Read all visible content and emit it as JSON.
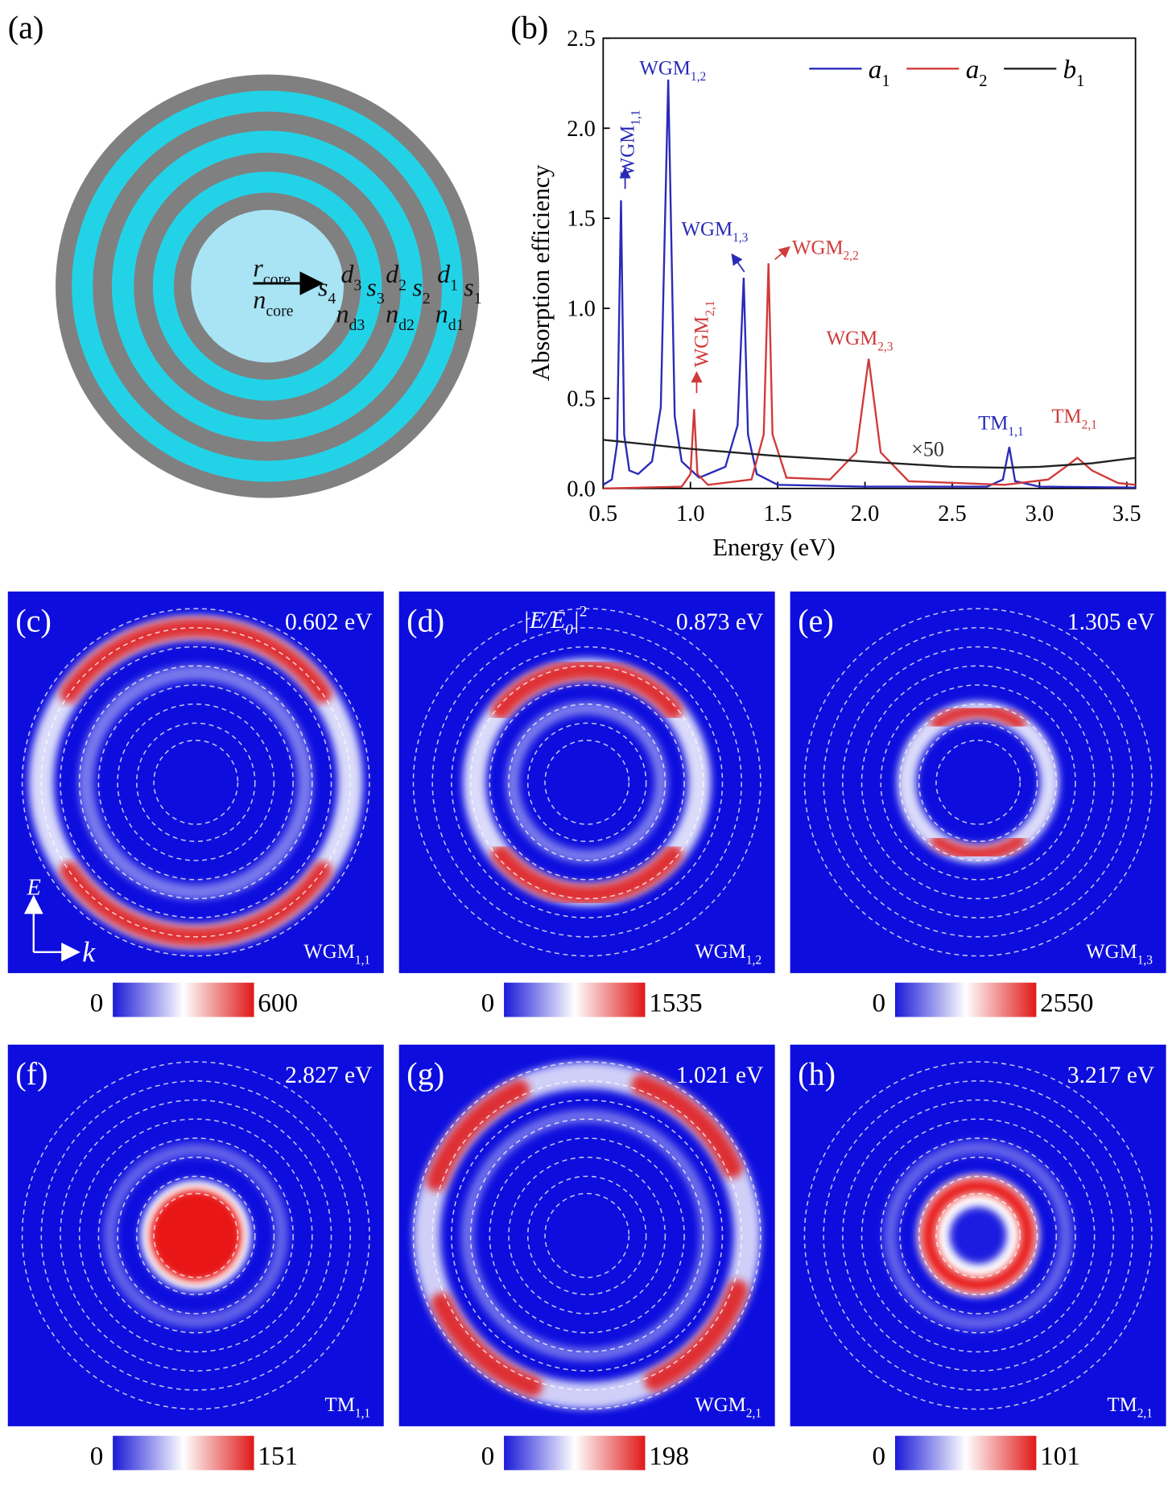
{
  "panel_a": {
    "label": "(a)",
    "labels": [
      {
        "text": "r",
        "sub": "core"
      },
      {
        "text": "s",
        "sub": "4"
      },
      {
        "text": "d",
        "sub": "3"
      },
      {
        "text": "s",
        "sub": "3"
      },
      {
        "text": "d",
        "sub": "2"
      },
      {
        "text": "s",
        "sub": "2"
      },
      {
        "text": "d",
        "sub": "1"
      },
      {
        "text": "s",
        "sub": "1"
      },
      {
        "text": "n",
        "sub": "core"
      },
      {
        "text": "n",
        "sub": "d3"
      },
      {
        "text": "n",
        "sub": "d2"
      },
      {
        "text": "n",
        "sub": "d1"
      }
    ]
  },
  "chart_data": {
    "type": "line",
    "label": "(b)",
    "x_label": "Energy (eV)",
    "y_label": "Absorption efficiency",
    "xlim": [
      0.5,
      3.55
    ],
    "ylim": [
      0,
      2.5
    ],
    "xticks": [
      0.5,
      {
        "value": 1,
        "label": "1.0"
      },
      1.5,
      {
        "value": 2,
        "label": "2.0"
      },
      2.5,
      {
        "value": 3,
        "label": "3.0"
      },
      3.5
    ],
    "yticks": [
      {
        "value": 0,
        "label": "0.0"
      },
      0.5,
      {
        "value": 1,
        "label": "1.0"
      },
      1.5,
      {
        "value": 2,
        "label": "2.0"
      },
      2.5
    ],
    "legend": "top-right",
    "series": [
      {
        "name": "a",
        "name_sub": "1",
        "color": "#2a2ab8",
        "x": [
          0.5,
          0.55,
          0.58,
          0.602,
          0.62,
          0.65,
          0.7,
          0.78,
          0.83,
          0.873,
          0.91,
          0.95,
          1.05,
          1.2,
          1.27,
          1.305,
          1.33,
          1.38,
          1.5,
          2.0,
          2.7,
          2.79,
          2.827,
          2.86,
          3.0,
          3.55
        ],
        "values": [
          0.02,
          0.05,
          0.25,
          1.6,
          0.3,
          0.1,
          0.08,
          0.15,
          0.45,
          2.27,
          0.4,
          0.15,
          0.06,
          0.12,
          0.35,
          1.17,
          0.3,
          0.08,
          0.02,
          0.01,
          0.01,
          0.05,
          0.23,
          0.04,
          0.01,
          0.005
        ]
      },
      {
        "name": "a",
        "name_sub": "2",
        "color": "#d03a3a",
        "x": [
          0.5,
          0.95,
          1.0,
          1.021,
          1.04,
          1.1,
          1.35,
          1.42,
          1.447,
          1.47,
          1.55,
          1.8,
          1.95,
          2.021,
          2.09,
          2.25,
          2.8,
          3.05,
          3.15,
          3.217,
          3.3,
          3.45,
          3.55
        ],
        "values": [
          0,
          0.01,
          0.08,
          0.44,
          0.08,
          0.02,
          0.05,
          0.3,
          1.25,
          0.3,
          0.06,
          0.05,
          0.2,
          0.72,
          0.2,
          0.04,
          0.02,
          0.05,
          0.12,
          0.17,
          0.1,
          0.03,
          0.02
        ]
      },
      {
        "name": "b",
        "name_sub": "1",
        "color": "#222222",
        "x": [
          0.5,
          1.0,
          1.5,
          2.0,
          2.5,
          2.8,
          3.0,
          3.3,
          3.55
        ],
        "values": [
          0.27,
          0.22,
          0.18,
          0.15,
          0.12,
          0.115,
          0.12,
          0.14,
          0.17
        ]
      }
    ],
    "annotations": [
      {
        "text": "WGM",
        "sub": "1,1"
      },
      {
        "text": "WGM",
        "sub": "1,2"
      },
      {
        "text": "WGM",
        "sub": "1,3"
      },
      {
        "text": "WGM",
        "sub": "2,1"
      },
      {
        "text": "WGM",
        "sub": "2,2"
      },
      {
        "text": "WGM",
        "sub": "2,3"
      },
      {
        "text": "TM",
        "sub": "1,1"
      },
      {
        "text": "TM",
        "sub": "2,1"
      }
    ],
    "multiplier": "×50"
  },
  "maps": [
    {
      "label": "(c)",
      "energy": "0.602 eV",
      "mode": {
        "text": "WGM",
        "sub": "1,1"
      },
      "colorbar": {
        "min": 0,
        "max": 600
      },
      "field_axes": [
        "E",
        "k"
      ]
    },
    {
      "label": "(d)",
      "energy": "0.873 eV",
      "mode": {
        "text": "WGM",
        "sub": "1,2"
      },
      "colorbar": {
        "min": 0,
        "max": 1535
      },
      "quantity": {
        "text": "|E/E",
        "sub": "0",
        "close": "|",
        "sup": "2"
      }
    },
    {
      "label": "(e)",
      "energy": "1.305 eV",
      "mode": {
        "text": "WGM",
        "sub": "1,3"
      },
      "colorbar": {
        "min": 0,
        "max": 2550
      }
    },
    {
      "label": "(f)",
      "energy": "2.827 eV",
      "mode": {
        "text": "TM",
        "sub": "1,1"
      },
      "colorbar": {
        "min": 0,
        "max": 151
      }
    },
    {
      "label": "(g)",
      "energy": "1.021 eV",
      "mode": {
        "text": "WGM",
        "sub": "2,1"
      },
      "colorbar": {
        "min": 0,
        "max": 198
      }
    },
    {
      "label": "(h)",
      "energy": "3.217 eV",
      "mode": {
        "text": "TM",
        "sub": "2,1"
      },
      "colorbar": {
        "min": 0,
        "max": 101
      }
    }
  ]
}
